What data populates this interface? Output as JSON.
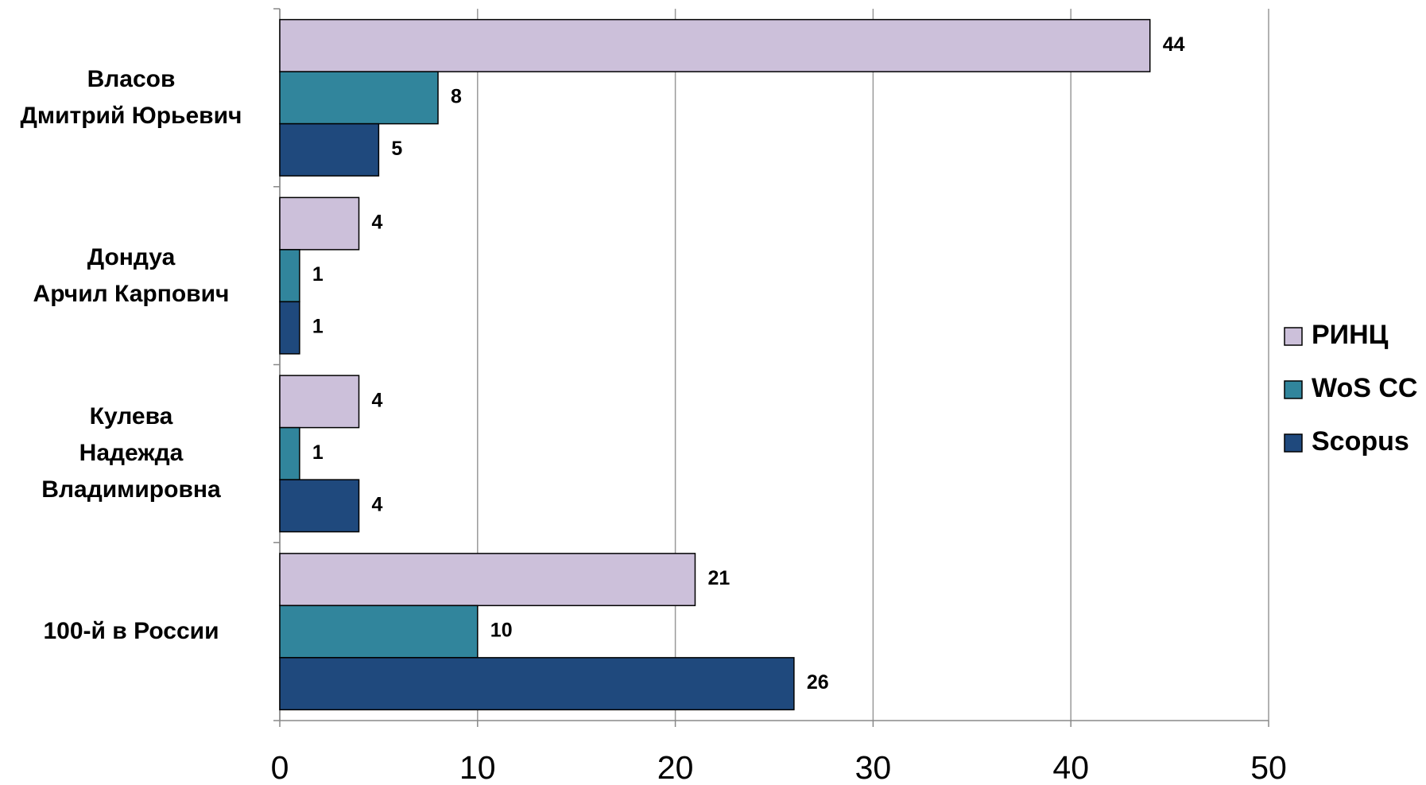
{
  "chart_data": {
    "type": "hbar",
    "categories": [
      "Власов\nДмитрий Юрьевич",
      "Дондуа\nАрчил Карпович",
      "Кулева\nНадежда\nВладимировна",
      "100-й в России"
    ],
    "series": [
      {
        "name": "РИНЦ",
        "color": "#ccc0da",
        "values": [
          44,
          4,
          4,
          21
        ]
      },
      {
        "name": "WoS CC",
        "color": "#31859c",
        "values": [
          8,
          1,
          1,
          10
        ]
      },
      {
        "name": "Scopus",
        "color": "#1f497d",
        "values": [
          5,
          1,
          4,
          26
        ]
      }
    ],
    "xlim": [
      0,
      50
    ],
    "xticks": [
      0,
      10,
      20,
      30,
      40,
      50
    ],
    "grid": true,
    "legend": "right"
  }
}
